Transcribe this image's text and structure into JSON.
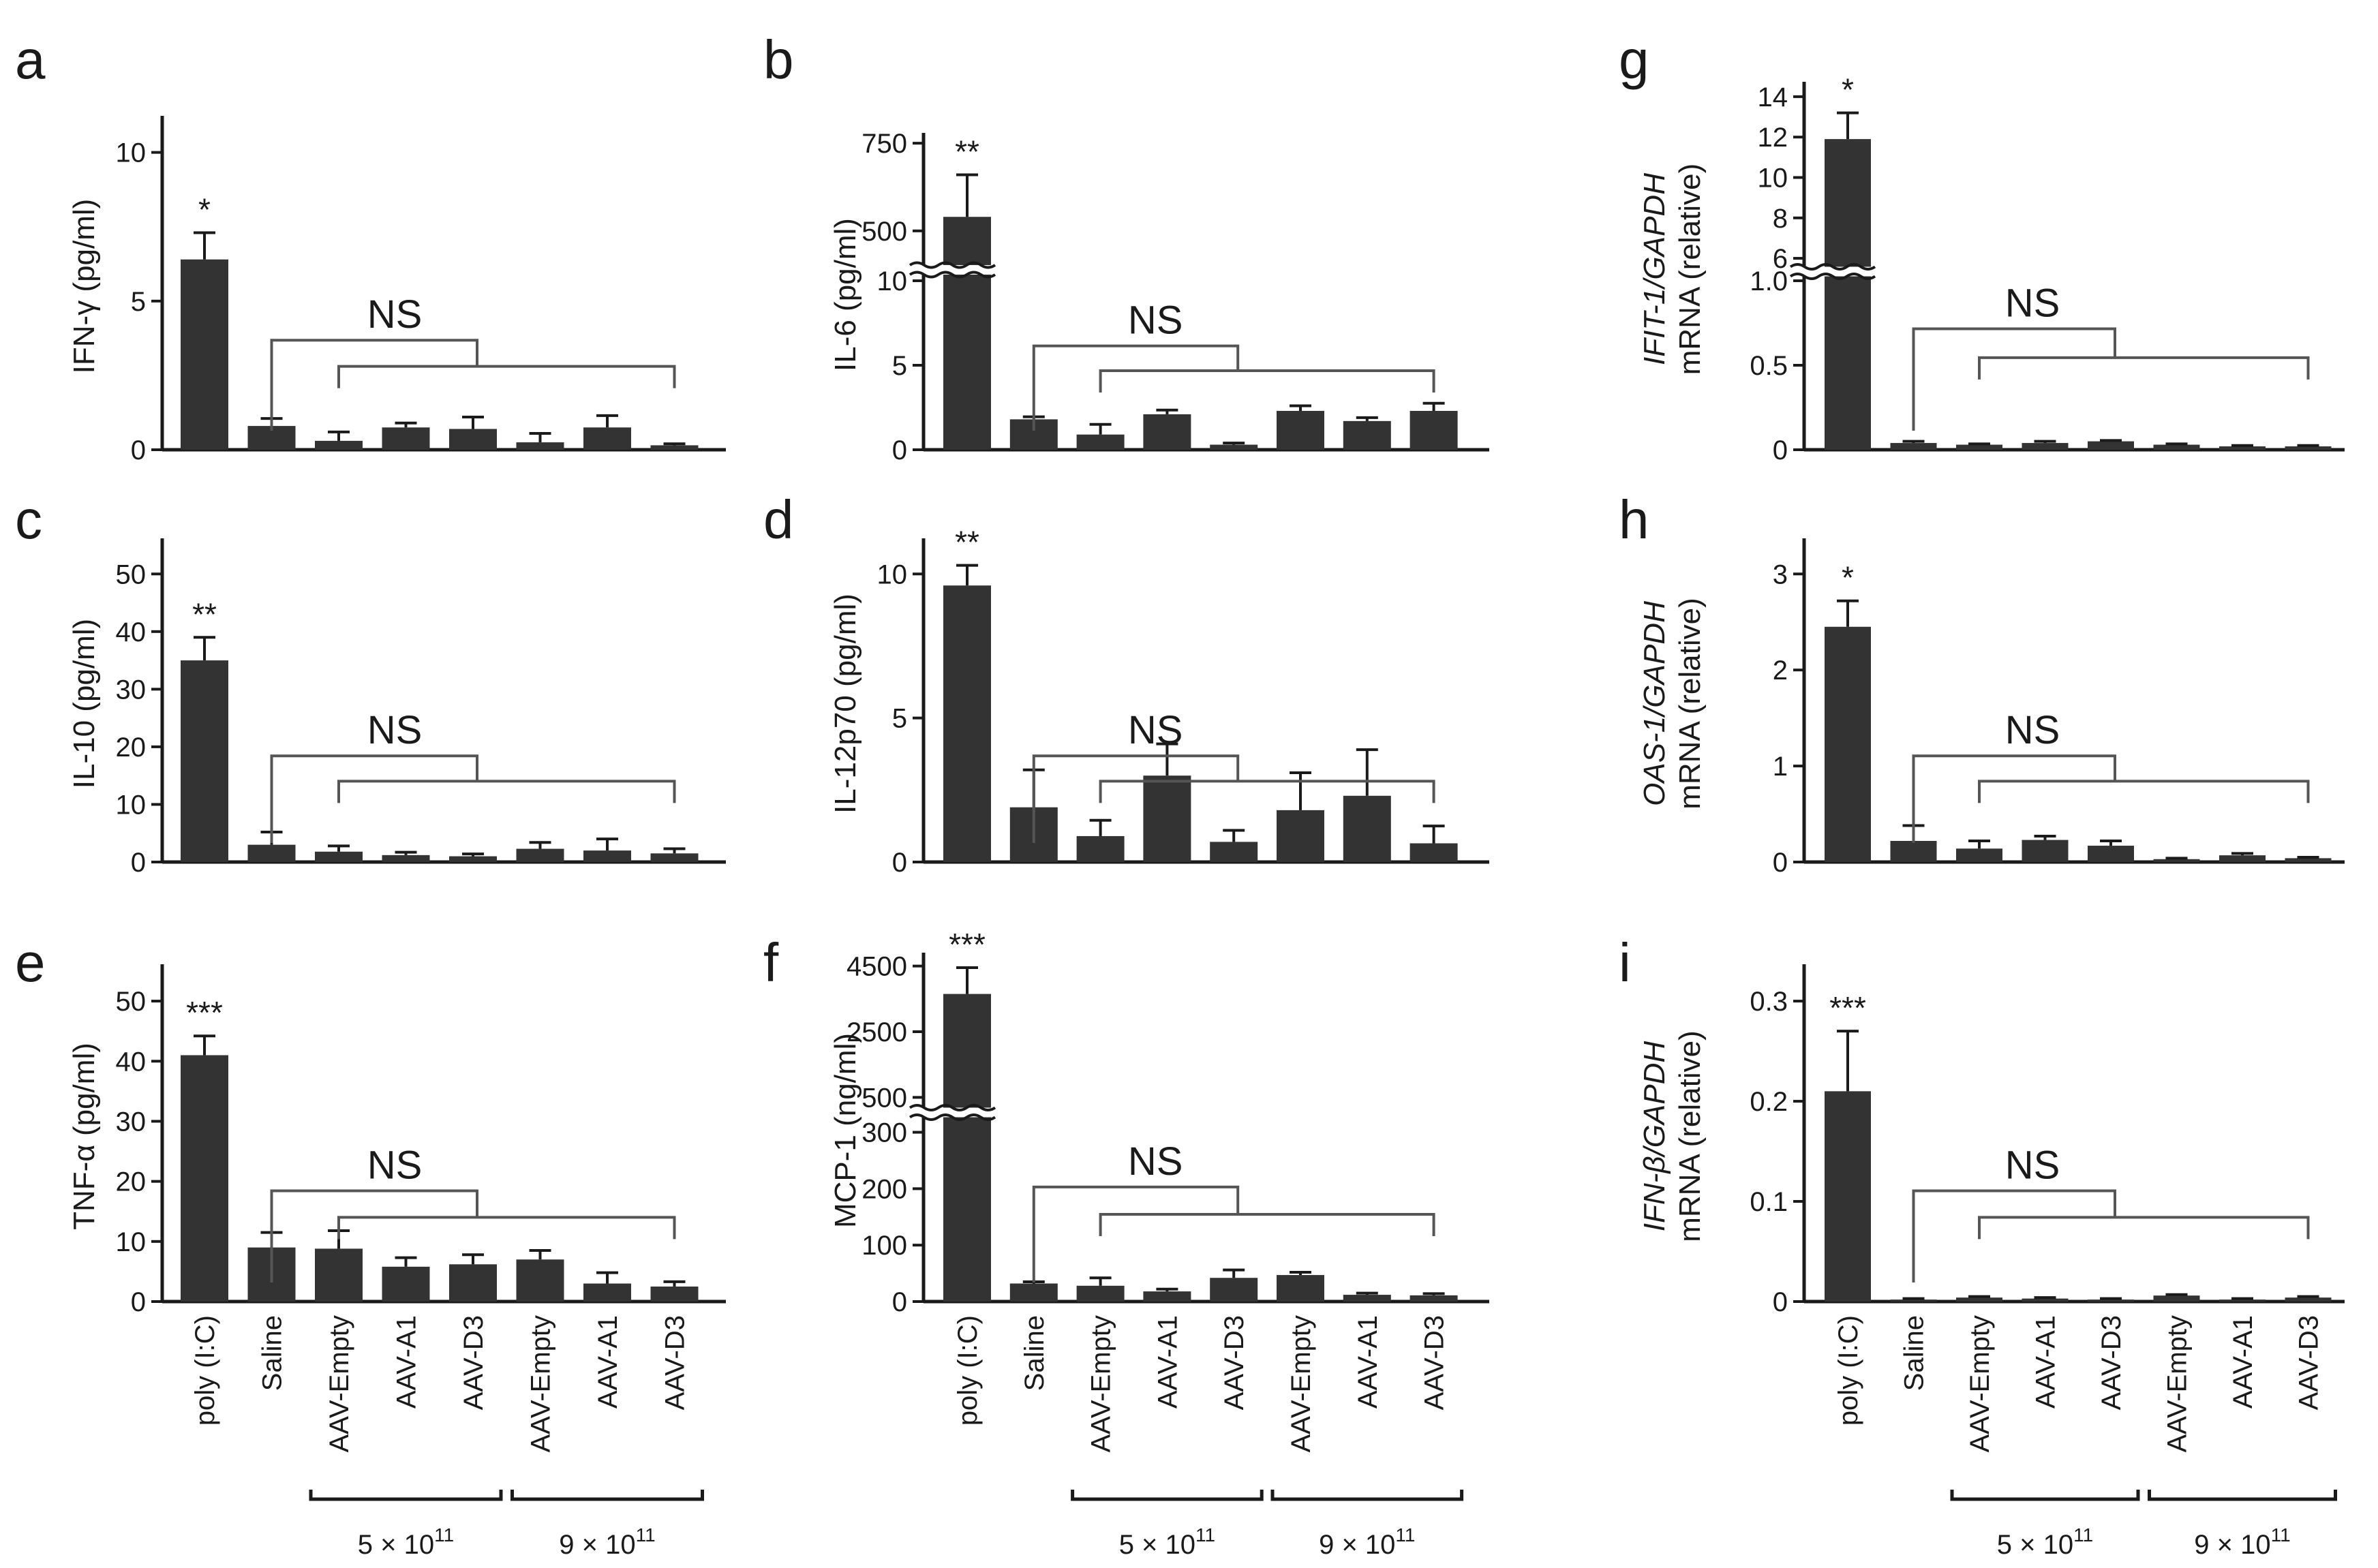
{
  "chart_data": [
    {
      "panel": "a",
      "type": "bar",
      "ylabel": "IFN-γ (pg/ml)",
      "ylim": [
        0,
        11
      ],
      "yticks": [
        0,
        5,
        10
      ],
      "categories": [
        "poly (I:C)",
        "Saline",
        "AAV-Empty",
        "AAV-A1",
        "AAV-D3",
        "AAV-Empty",
        "AAV-A1",
        "AAV-D3"
      ],
      "values": [
        6.4,
        0.8,
        0.3,
        0.75,
        0.7,
        0.25,
        0.75,
        0.15
      ],
      "errors": [
        0.9,
        0.25,
        0.3,
        0.15,
        0.4,
        0.3,
        0.4,
        0.05
      ],
      "significance": "*",
      "ns_label": "NS"
    },
    {
      "panel": "b",
      "type": "bar",
      "ylabel": "IL-6 (pg/ml)",
      "axis_break": true,
      "lower_ylim": [
        0,
        10
      ],
      "lower_yticks": [
        0,
        5,
        10
      ],
      "upper_ylim": [
        420,
        760
      ],
      "upper_yticks": [
        500,
        750
      ],
      "categories": [
        "poly (I:C)",
        "Saline",
        "AAV-Empty",
        "AAV-A1",
        "AAV-D3",
        "AAV-Empty",
        "AAV-A1",
        "AAV-D3"
      ],
      "values": [
        540,
        1.8,
        0.9,
        2.1,
        0.3,
        2.3,
        1.7,
        2.3
      ],
      "errors": [
        120,
        0.15,
        0.6,
        0.25,
        0.1,
        0.3,
        0.2,
        0.45
      ],
      "significance": "**",
      "ns_label": "NS"
    },
    {
      "panel": "c",
      "type": "bar",
      "ylabel": "IL-10 (pg/ml)",
      "ylim": [
        0,
        55
      ],
      "yticks": [
        0,
        10,
        20,
        30,
        40,
        50
      ],
      "categories": [
        "poly (I:C)",
        "Saline",
        "AAV-Empty",
        "AAV-A1",
        "AAV-D3",
        "AAV-Empty",
        "AAV-A1",
        "AAV-D3"
      ],
      "values": [
        35,
        3,
        1.8,
        1.2,
        1.0,
        2.3,
        2.0,
        1.5
      ],
      "errors": [
        4,
        2.2,
        1.0,
        0.5,
        0.4,
        1.1,
        2.0,
        0.8
      ],
      "significance": "**",
      "ns_label": "NS"
    },
    {
      "panel": "d",
      "type": "bar",
      "ylabel": "IL-12p70 (pg/ml)",
      "ylim": [
        0,
        11
      ],
      "yticks": [
        0,
        5,
        10
      ],
      "categories": [
        "poly (I:C)",
        "Saline",
        "AAV-Empty",
        "AAV-A1",
        "AAV-D3",
        "AAV-Empty",
        "AAV-A1",
        "AAV-D3"
      ],
      "values": [
        9.6,
        1.9,
        0.9,
        3.0,
        0.7,
        1.8,
        2.3,
        0.65
      ],
      "errors": [
        0.7,
        1.3,
        0.55,
        1.1,
        0.4,
        1.3,
        1.6,
        0.6
      ],
      "significance": "**",
      "ns_label": "NS"
    },
    {
      "panel": "e",
      "type": "bar",
      "ylabel": "TNF-α (pg/ml)",
      "ylim": [
        0,
        55
      ],
      "yticks": [
        0,
        10,
        20,
        30,
        40,
        50
      ],
      "categories": [
        "poly (I:C)",
        "Saline",
        "AAV-Empty",
        "AAV-A1",
        "AAV-D3",
        "AAV-Empty",
        "AAV-A1",
        "AAV-D3"
      ],
      "values": [
        41,
        9,
        8.8,
        5.8,
        6.2,
        7.0,
        3.0,
        2.5
      ],
      "errors": [
        3.2,
        2.5,
        3.0,
        1.5,
        1.6,
        1.5,
        1.8,
        0.8
      ],
      "significance": "***",
      "ns_label": "NS"
    },
    {
      "panel": "f",
      "type": "bar",
      "ylabel": "MCP-1 (ng/ml)",
      "axis_break": true,
      "lower_ylim": [
        0,
        320
      ],
      "lower_yticks": [
        0,
        100,
        200,
        300
      ],
      "upper_ylim": [
        300,
        4700
      ],
      "upper_yticks": [
        500,
        2500,
        4500
      ],
      "categories": [
        "poly (I:C)",
        "Saline",
        "AAV-Empty",
        "AAV-A1",
        "AAV-D3",
        "AAV-Empty",
        "AAV-A1",
        "AAV-D3"
      ],
      "values": [
        3650,
        32,
        28,
        18,
        42,
        47,
        12,
        11
      ],
      "errors": [
        800,
        3,
        14,
        4,
        14,
        5,
        3,
        3
      ],
      "significance": "***",
      "ns_label": "NS"
    },
    {
      "panel": "g",
      "type": "bar",
      "ylabel_italic": "IFIT-1/GAPDH",
      "ylabel": "mRNA (relative)",
      "axis_break": true,
      "lower_ylim": [
        0,
        1.0
      ],
      "lower_yticks": [
        0,
        0.5,
        1.0
      ],
      "upper_ylim": [
        5.8,
        14.4
      ],
      "upper_yticks": [
        6,
        8,
        10,
        12,
        14
      ],
      "categories": [
        "poly (I:C)",
        "Saline",
        "AAV-Empty",
        "AAV-A1",
        "AAV-D3",
        "AAV-Empty",
        "AAV-A1",
        "AAV-D3"
      ],
      "values": [
        11.9,
        0.04,
        0.03,
        0.04,
        0.05,
        0.03,
        0.02,
        0.02
      ],
      "errors": [
        1.3,
        0.01,
        0.005,
        0.01,
        0.005,
        0.005,
        0.005,
        0.005
      ],
      "significance": "*",
      "ns_label": "NS"
    },
    {
      "panel": "h",
      "type": "bar",
      "ylabel_italic": "OAS-1/GAPDH",
      "ylabel": "mRNA (relative)",
      "ylim": [
        0,
        3.3
      ],
      "yticks": [
        0,
        1,
        2,
        3
      ],
      "categories": [
        "poly (I:C)",
        "Saline",
        "AAV-Empty",
        "AAV-A1",
        "AAV-D3",
        "AAV-Empty",
        "AAV-A1",
        "AAV-D3"
      ],
      "values": [
        2.45,
        0.22,
        0.14,
        0.23,
        0.17,
        0.03,
        0.07,
        0.04
      ],
      "errors": [
        0.27,
        0.16,
        0.08,
        0.04,
        0.05,
        0.01,
        0.02,
        0.01
      ],
      "significance": "*",
      "ns_label": "NS"
    },
    {
      "panel": "i",
      "type": "bar",
      "ylabel_italic": "IFN-β/GAPDH",
      "ylabel": "mRNA (relative)",
      "ylim": [
        0,
        0.33
      ],
      "yticks": [
        0,
        0.1,
        0.2,
        0.3
      ],
      "categories": [
        "poly (I:C)",
        "Saline",
        "AAV-Empty",
        "AAV-A1",
        "AAV-D3",
        "AAV-Empty",
        "AAV-A1",
        "AAV-D3"
      ],
      "values": [
        0.21,
        0.002,
        0.004,
        0.003,
        0.002,
        0.006,
        0.002,
        0.004
      ],
      "errors": [
        0.06,
        0.001,
        0.001,
        0.001,
        0.001,
        0.001,
        0.001,
        0.001
      ],
      "significance": "***",
      "ns_label": "NS"
    }
  ],
  "dose_labels": [
    "5 × 10",
    "9 × 10"
  ],
  "dose_exponent": "11",
  "colors": {
    "bar": "#333333",
    "axis": "#1a1a1a",
    "bracket": "#555555"
  }
}
